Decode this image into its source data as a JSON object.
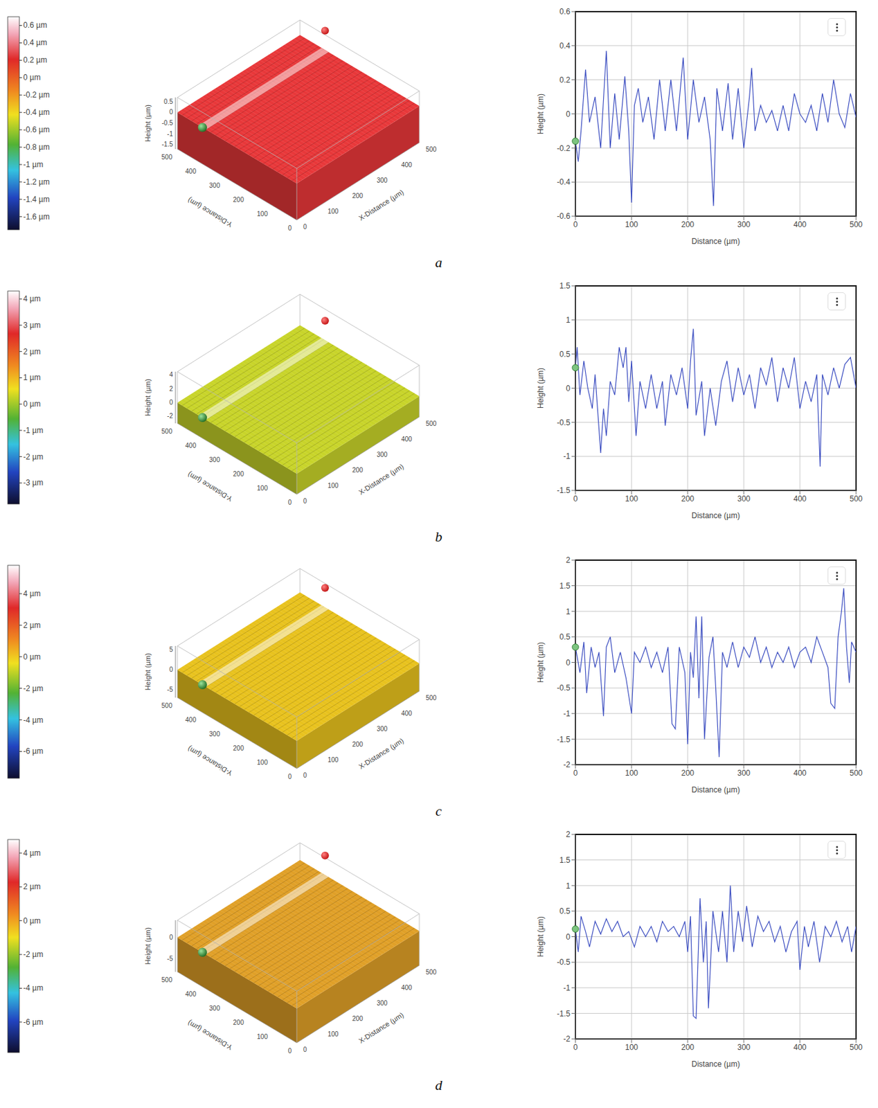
{
  "chart_data": [
    {
      "label": "a",
      "type": "line",
      "x_label": "Distance (µm)",
      "y_label": "Height (µm)",
      "color": "#3a4cc0",
      "grid": true,
      "xlim": [
        0,
        500
      ],
      "ylim": [
        -0.6,
        0.6
      ],
      "xticks": [
        0,
        100,
        200,
        300,
        400,
        500
      ],
      "yticks": [
        -0.6,
        -0.4,
        -0.2,
        0,
        0.2,
        0.4,
        0.6
      ],
      "x": [
        0,
        5,
        10,
        18,
        25,
        35,
        45,
        55,
        62,
        70,
        78,
        88,
        95,
        100,
        105,
        112,
        120,
        130,
        140,
        150,
        160,
        170,
        180,
        192,
        200,
        210,
        220,
        230,
        240,
        246,
        252,
        262,
        272,
        280,
        290,
        300,
        310,
        314,
        320,
        330,
        340,
        350,
        360,
        370,
        380,
        390,
        400,
        410,
        420,
        430,
        440,
        450,
        460,
        470,
        480,
        490,
        500
      ],
      "values": [
        -0.16,
        -0.28,
        -0.1,
        0.26,
        -0.05,
        0.1,
        -0.2,
        0.37,
        -0.2,
        0.12,
        -0.15,
        0.22,
        -0.1,
        -0.52,
        0.05,
        0.15,
        -0.05,
        0.1,
        -0.15,
        0.2,
        -0.1,
        0.2,
        -0.1,
        0.33,
        -0.15,
        0.2,
        -0.05,
        0.1,
        -0.15,
        -0.54,
        0.15,
        -0.1,
        0.18,
        -0.15,
        0.15,
        -0.2,
        0.1,
        0.27,
        -0.1,
        0.05,
        -0.05,
        0.02,
        -0.1,
        0.05,
        -0.1,
        0.12,
        0,
        -0.05,
        0.05,
        -0.1,
        0.12,
        -0.05,
        0.2,
        0,
        -0.08,
        0.12,
        -0.02
      ],
      "colorbar": {
        "range": [
          -1.75,
          0.7
        ],
        "ticks": [
          {
            "value": 0.6,
            "label": "0.6 µm"
          },
          {
            "value": 0.4,
            "label": "0.4 µm"
          },
          {
            "value": 0.2,
            "label": "0.2 µm"
          },
          {
            "value": 0,
            "label": "0 µm"
          },
          {
            "value": -0.2,
            "label": "-0.2 µm"
          },
          {
            "value": -0.4,
            "label": "-0.4 µm"
          },
          {
            "value": -0.6,
            "label": "-0.6 µm"
          },
          {
            "value": -0.8,
            "label": "-0.8 µm"
          },
          {
            "value": -1,
            "label": "-1 µm"
          },
          {
            "value": -1.2,
            "label": "-1.2 µm"
          },
          {
            "value": -1.4,
            "label": "-1.4 µm"
          },
          {
            "value": -1.6,
            "label": "-1.6 µm"
          }
        ]
      },
      "surface": {
        "color": "#e8383a",
        "x_label": "X-Distance (µm)",
        "y_label": "Y-Distance (µm)",
        "z_label": "Height (µm)",
        "xlim": [
          0,
          500
        ],
        "ylim": [
          0,
          500
        ],
        "zlim": [
          -1.7,
          0.7
        ],
        "xticks": [
          0,
          100,
          200,
          300,
          400,
          500
        ],
        "yticks": [
          0,
          100,
          200,
          300,
          400,
          500
        ],
        "zticks": [
          -1.5,
          -1,
          -0.5,
          0,
          0.5
        ]
      }
    },
    {
      "label": "b",
      "type": "line",
      "x_label": "Distance (µm)",
      "y_label": "Height (µm)",
      "color": "#3a4cc0",
      "grid": true,
      "xlim": [
        0,
        500
      ],
      "ylim": [
        -1.5,
        1.5
      ],
      "xticks": [
        0,
        100,
        200,
        300,
        400,
        500
      ],
      "yticks": [
        -1.5,
        -1,
        -0.5,
        0,
        0.5,
        1,
        1.5
      ],
      "x": [
        0,
        3,
        8,
        15,
        22,
        30,
        35,
        45,
        50,
        55,
        62,
        70,
        78,
        85,
        90,
        95,
        100,
        108,
        115,
        125,
        135,
        145,
        155,
        160,
        170,
        180,
        190,
        200,
        205,
        210,
        215,
        225,
        230,
        240,
        250,
        260,
        270,
        280,
        290,
        300,
        310,
        320,
        330,
        340,
        350,
        360,
        370,
        380,
        390,
        400,
        410,
        420,
        430,
        436,
        440,
        450,
        460,
        470,
        480,
        490,
        500
      ],
      "values": [
        0.3,
        0.6,
        -0.1,
        0.4,
        0,
        -0.3,
        0.2,
        -0.95,
        -0.3,
        -0.7,
        0.1,
        -0.1,
        0.6,
        0.3,
        0.6,
        -0.2,
        0.4,
        -0.7,
        0.1,
        -0.3,
        0.2,
        -0.3,
        0.1,
        -0.55,
        0.2,
        -0.1,
        0.3,
        -0.3,
        0.4,
        0.87,
        -0.4,
        0.1,
        -0.7,
        0,
        -0.55,
        0.1,
        0.4,
        -0.2,
        0.3,
        -0.1,
        0.2,
        -0.3,
        0.3,
        0.05,
        0.45,
        -0.2,
        0.3,
        0,
        0.45,
        -0.3,
        0.1,
        -0.2,
        0.2,
        -1.15,
        0.2,
        -0.1,
        0.3,
        0,
        0.35,
        0.45,
        0
      ],
      "colorbar": {
        "range": [
          -3.8,
          4.3
        ],
        "ticks": [
          {
            "value": 4,
            "label": "4 µm"
          },
          {
            "value": 3,
            "label": "3 µm"
          },
          {
            "value": 2,
            "label": "2 µm"
          },
          {
            "value": 1,
            "label": "1 µm"
          },
          {
            "value": 0,
            "label": "0 µm"
          },
          {
            "value": -1,
            "label": "-1 µm"
          },
          {
            "value": -2,
            "label": "-2 µm"
          },
          {
            "value": -3,
            "label": "-3 µm"
          }
        ]
      },
      "surface": {
        "color": "#c8d42a",
        "x_label": "X-Distance (µm)",
        "y_label": "Y-Distance (µm)",
        "z_label": "Height (µm)",
        "xlim": [
          0,
          500
        ],
        "ylim": [
          0,
          500
        ],
        "zlim": [
          -3,
          4.5
        ],
        "xticks": [
          0,
          100,
          200,
          300,
          400,
          500
        ],
        "yticks": [
          0,
          100,
          200,
          300,
          400,
          500
        ],
        "zticks": [
          -2,
          0,
          2,
          4
        ]
      }
    },
    {
      "label": "c",
      "type": "line",
      "x_label": "Distance (µm)",
      "y_label": "Height (µm)",
      "color": "#3a4cc0",
      "grid": true,
      "xlim": [
        0,
        500
      ],
      "ylim": [
        -2,
        2
      ],
      "xticks": [
        0,
        100,
        200,
        300,
        400,
        500
      ],
      "yticks": [
        -2,
        -1.5,
        -1,
        -0.5,
        0,
        0.5,
        1,
        1.5,
        2
      ],
      "x": [
        0,
        8,
        15,
        20,
        28,
        35,
        42,
        50,
        55,
        62,
        70,
        80,
        90,
        100,
        105,
        115,
        125,
        135,
        145,
        155,
        165,
        172,
        178,
        185,
        195,
        200,
        205,
        210,
        215,
        220,
        225,
        230,
        238,
        245,
        250,
        256,
        262,
        270,
        280,
        290,
        300,
        310,
        320,
        330,
        340,
        350,
        360,
        370,
        380,
        390,
        400,
        410,
        420,
        430,
        440,
        450,
        455,
        462,
        468,
        474,
        478,
        483,
        488,
        492,
        500
      ],
      "values": [
        0.3,
        -0.2,
        0.4,
        -0.6,
        0.3,
        -0.1,
        0.2,
        -1.05,
        0.3,
        0.5,
        -0.2,
        0.2,
        -0.3,
        -1,
        0.2,
        0,
        0.3,
        -0.1,
        0.2,
        -0.2,
        0.3,
        -1.2,
        -1.3,
        0.3,
        -0.2,
        -1.6,
        0.2,
        -0.3,
        0.9,
        -0.7,
        0.9,
        -1.5,
        0.1,
        0.5,
        -0.5,
        -1.85,
        0.2,
        -0.1,
        0.4,
        -0.1,
        0.3,
        0.1,
        0.5,
        0,
        0.3,
        -0.1,
        0.2,
        0,
        0.3,
        -0.1,
        0.2,
        0.3,
        0,
        0.5,
        0.2,
        -0.1,
        -0.8,
        -0.9,
        0.5,
        1,
        1.45,
        0.3,
        -0.4,
        0.4,
        0.2
      ],
      "colorbar": {
        "range": [
          -7.7,
          5.8
        ],
        "ticks": [
          {
            "value": 4,
            "label": "4 µm"
          },
          {
            "value": 2,
            "label": "2 µm"
          },
          {
            "value": 0,
            "label": "0 µm"
          },
          {
            "value": -2,
            "label": "-2 µm"
          },
          {
            "value": -4,
            "label": "-4 µm"
          },
          {
            "value": -6,
            "label": "-6 µm"
          }
        ]
      },
      "surface": {
        "color": "#e8c21e",
        "x_label": "X-Distance (µm)",
        "y_label": "Y-Distance (µm)",
        "z_label": "Height (µm)",
        "xlim": [
          0,
          500
        ],
        "ylim": [
          0,
          500
        ],
        "zlim": [
          -7,
          6
        ],
        "xticks": [
          0,
          100,
          200,
          300,
          400,
          500
        ],
        "yticks": [
          0,
          100,
          200,
          300,
          400,
          500
        ],
        "zticks": [
          -5,
          0,
          5
        ]
      }
    },
    {
      "label": "d",
      "type": "line",
      "x_label": "Distance (µm)",
      "y_label": "Height (µm)",
      "color": "#3a4cc0",
      "grid": true,
      "xlim": [
        0,
        500
      ],
      "ylim": [
        -2,
        2
      ],
      "xticks": [
        0,
        100,
        200,
        300,
        400,
        500
      ],
      "yticks": [
        -2,
        -1.5,
        -1,
        -0.5,
        0,
        0.5,
        1,
        1.5,
        2
      ],
      "x": [
        0,
        5,
        10,
        18,
        25,
        35,
        45,
        55,
        65,
        75,
        85,
        95,
        105,
        115,
        125,
        135,
        145,
        155,
        165,
        175,
        185,
        195,
        200,
        205,
        210,
        215,
        222,
        228,
        233,
        237,
        245,
        255,
        262,
        270,
        276,
        282,
        290,
        298,
        305,
        315,
        325,
        335,
        345,
        355,
        365,
        375,
        385,
        395,
        400,
        408,
        415,
        425,
        435,
        445,
        455,
        465,
        475,
        485,
        492,
        500
      ],
      "values": [
        0.15,
        -0.3,
        0.4,
        0.1,
        -0.2,
        0.3,
        0.05,
        0.35,
        0.1,
        0.3,
        0,
        0.1,
        -0.2,
        0.2,
        0,
        0.2,
        -0.1,
        0.3,
        0.1,
        0.2,
        0,
        0.3,
        -0.3,
        0.4,
        -1.55,
        -1.6,
        0.75,
        -0.5,
        0.3,
        -1.4,
        0.5,
        -0.3,
        0.5,
        -0.5,
        1,
        -0.3,
        0.5,
        -0.1,
        0.6,
        -0.2,
        0.4,
        0.1,
        0.3,
        -0.1,
        0.2,
        -0.3,
        0.1,
        0.3,
        -0.65,
        0.2,
        -0.2,
        0.3,
        -0.5,
        0.2,
        0,
        0.3,
        -0.1,
        0.2,
        -0.3,
        0.2
      ],
      "colorbar": {
        "range": [
          -7.8,
          4.8
        ],
        "ticks": [
          {
            "value": 4,
            "label": "4 µm"
          },
          {
            "value": 2,
            "label": "2 µm"
          },
          {
            "value": 0,
            "label": "0 µm"
          },
          {
            "value": -2,
            "label": "-2 µm"
          },
          {
            "value": -4,
            "label": "-4 µm"
          },
          {
            "value": -6,
            "label": "-6 µm"
          }
        ]
      },
      "surface": {
        "color": "#e0a028",
        "x_label": "X-Distance (µm)",
        "y_label": "Y-Distance (µm)",
        "z_label": "Height (µm)",
        "xlim": [
          0,
          500
        ],
        "ylim": [
          0,
          500
        ],
        "zlim": [
          -8,
          4
        ],
        "xticks": [
          0,
          100,
          200,
          300,
          400,
          500
        ],
        "yticks": [
          0,
          100,
          200,
          300,
          400,
          500
        ],
        "zticks": [
          -5,
          0
        ]
      }
    }
  ]
}
